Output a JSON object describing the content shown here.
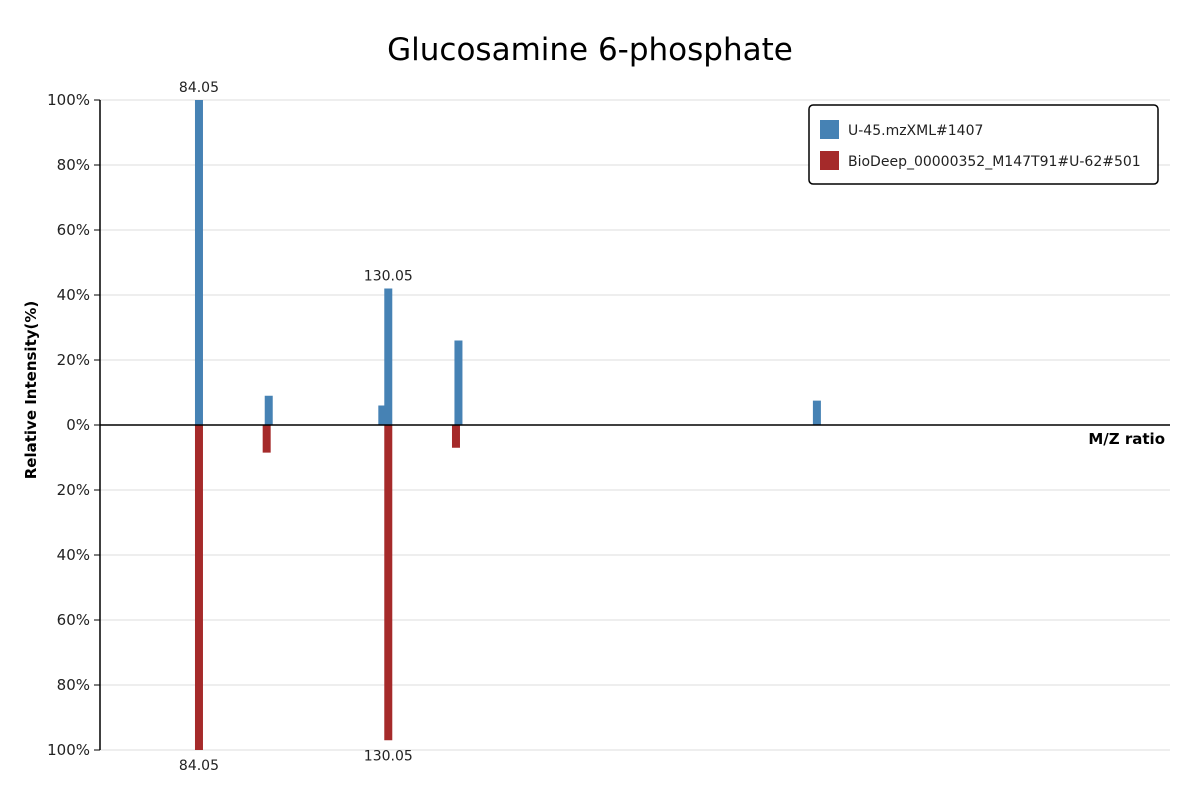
{
  "chart_data": {
    "type": "bar",
    "title": "Glucosamine 6-phosphate",
    "xlabel": "M/Z ratio",
    "ylabel": "Relative Intensity(%)",
    "xlim": [
      60,
      320
    ],
    "ylim": [
      -100,
      100
    ],
    "y_ticks": [
      {
        "value": 100,
        "label": "100%"
      },
      {
        "value": 80,
        "label": "80%"
      },
      {
        "value": 60,
        "label": "60%"
      },
      {
        "value": 40,
        "label": "40%"
      },
      {
        "value": 20,
        "label": "20%"
      },
      {
        "value": 0,
        "label": "0%"
      },
      {
        "value": -20,
        "label": "20%"
      },
      {
        "value": -40,
        "label": "40%"
      },
      {
        "value": -60,
        "label": "60%"
      },
      {
        "value": -80,
        "label": "80%"
      },
      {
        "value": -100,
        "label": "100%"
      }
    ],
    "grid": true,
    "legend_position": "top-right",
    "series": [
      {
        "name": "U-45.mzXML#1407",
        "color": "#4682b4",
        "direction": "up",
        "peaks": [
          {
            "mz": 84.05,
            "intensity": 100,
            "label": "84.05"
          },
          {
            "mz": 101.0,
            "intensity": 9
          },
          {
            "mz": 128.6,
            "intensity": 6
          },
          {
            "mz": 130.05,
            "intensity": 42,
            "label": "130.05"
          },
          {
            "mz": 147.1,
            "intensity": 26
          },
          {
            "mz": 234.2,
            "intensity": 7.5
          }
        ]
      },
      {
        "name": "BioDeep_00000352_M147T91#U-62#501",
        "color": "#a52a2a",
        "direction": "down",
        "peaks": [
          {
            "mz": 84.05,
            "intensity": 100,
            "label": "84.05"
          },
          {
            "mz": 100.5,
            "intensity": 8.5
          },
          {
            "mz": 130.05,
            "intensity": 97,
            "label": "130.05"
          },
          {
            "mz": 146.5,
            "intensity": 7
          }
        ]
      }
    ]
  }
}
